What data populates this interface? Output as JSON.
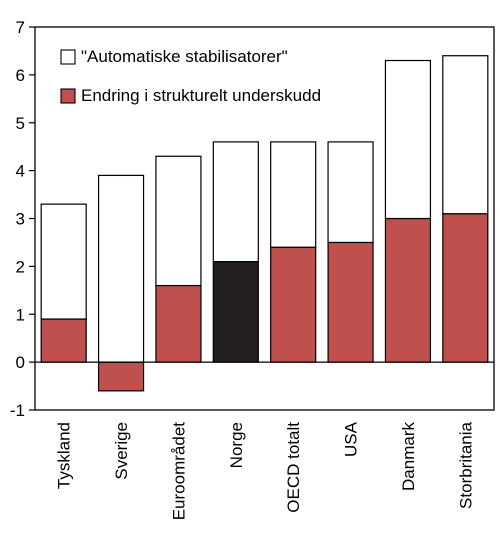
{
  "chart_data": {
    "type": "bar",
    "stacked": true,
    "categories": [
      "Tyskland",
      "Sverige",
      "Euroområdet",
      "Norge",
      "OECD totalt",
      "USA",
      "Danmark",
      "Storbritania"
    ],
    "series": [
      {
        "name": "Endring i strukturelt underskudd",
        "values": [
          0.9,
          -0.6,
          1.6,
          2.1,
          2.4,
          2.5,
          3.0,
          3.1
        ],
        "color": "#c0504d",
        "highlight": {
          "category": "Norge",
          "color": "#231f20"
        }
      },
      {
        "name": "\"Automatiske stabilisatorer\"",
        "values": [
          2.4,
          3.9,
          2.7,
          2.5,
          2.2,
          2.1,
          3.3,
          3.3
        ],
        "color": "#ffffff"
      }
    ],
    "totals": [
      3.3,
      3.9,
      4.3,
      4.6,
      4.6,
      4.6,
      6.3,
      6.4
    ],
    "ylim": [
      -1,
      7
    ],
    "yticks": [
      "-1",
      "0",
      "1",
      "2",
      "3",
      "4",
      "5",
      "6",
      "7"
    ],
    "grid": false,
    "legend_position": "top-left",
    "legend_order": [
      1,
      0
    ]
  }
}
